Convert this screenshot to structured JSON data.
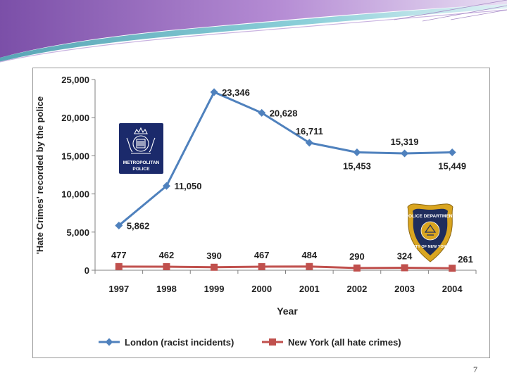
{
  "slide": {
    "page_number": "7",
    "colors": {
      "banner_purple": "#8a5fb0",
      "banner_teal": "#3fa9b8",
      "banner_light": "#e9dff2"
    }
  },
  "logos": {
    "met": {
      "line1": "METROPOLITAN",
      "line2": "POLICE",
      "color": "#1b2a6b"
    },
    "nypd": {
      "top_text": "POLICE DEPARTMENT",
      "bottom_text": "CITY OF NEW YORK",
      "color": "#1f2d5c",
      "accent": "#d9a520"
    }
  },
  "chart_data": {
    "type": "line",
    "title": "",
    "xlabel": "Year",
    "ylabel": "'Hate Crimes' recorded by the police",
    "categories": [
      "1997",
      "1998",
      "1999",
      "2000",
      "2001",
      "2002",
      "2003",
      "2004"
    ],
    "ylim": [
      0,
      25000
    ],
    "yticks": [
      {
        "value": 0,
        "label": "0"
      },
      {
        "value": 5000,
        "label": "5,000"
      },
      {
        "value": 10000,
        "label": "10,000"
      },
      {
        "value": 15000,
        "label": "15,000"
      },
      {
        "value": 20000,
        "label": "20,000"
      },
      {
        "value": 25000,
        "label": "25,000"
      }
    ],
    "grid": false,
    "legend": "bottom",
    "series": [
      {
        "name": "London (racist incidents)",
        "color": "#4f81bd",
        "marker": "diamond",
        "values": [
          5862,
          11050,
          23346,
          20628,
          16711,
          15453,
          15319,
          15449
        ],
        "labels": [
          "5,862",
          "11,050",
          "23,346",
          "20,628",
          "16,711",
          "15,453",
          "15,319",
          "15,449"
        ],
        "label_pos": [
          "right",
          "right",
          "right",
          "right",
          "above",
          "below",
          "above",
          "below"
        ]
      },
      {
        "name": "New York (all hate crimes)",
        "color": "#c0504d",
        "marker": "square",
        "values": [
          477,
          462,
          390,
          467,
          484,
          290,
          324,
          261
        ],
        "labels": [
          "477",
          "462",
          "390",
          "467",
          "484",
          "290",
          "324",
          "261"
        ],
        "label_pos": [
          "above",
          "above",
          "above",
          "above",
          "above",
          "above",
          "above",
          "right"
        ]
      }
    ]
  }
}
